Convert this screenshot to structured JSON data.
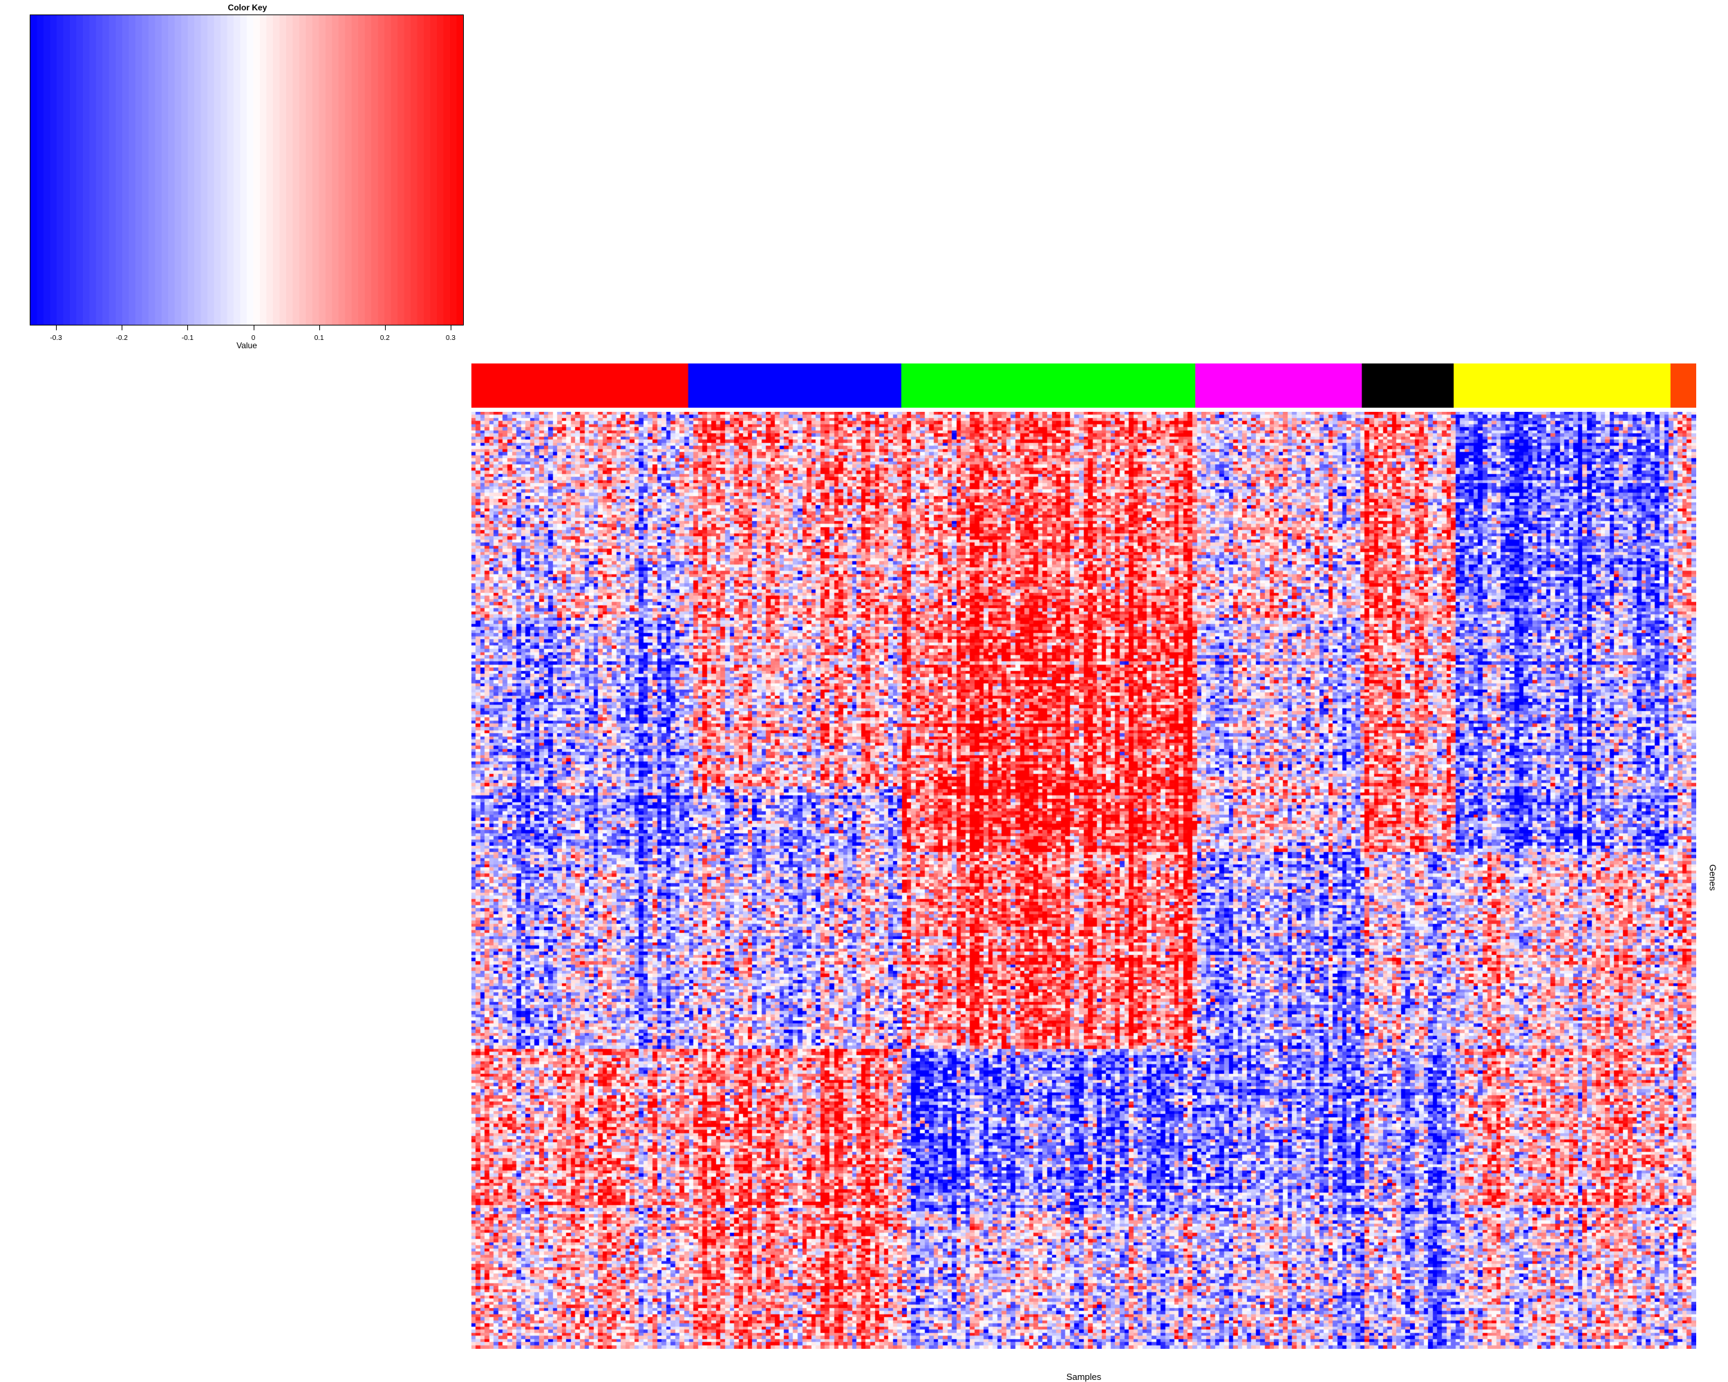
{
  "chart_data": {
    "type": "heatmap",
    "title": "",
    "xlabel": "Samples",
    "ylabel": "Genes",
    "color_key": {
      "title": "Color Key",
      "xlabel": "Value",
      "range": [
        -0.34,
        0.32
      ],
      "ticks": [
        -0.3,
        -0.2,
        -0.1,
        0,
        0.1,
        0.2,
        0.3
      ],
      "tick_labels": [
        "-0.3",
        "-0.2",
        "-0.1",
        "0",
        "0.1",
        "0.2",
        "0.3"
      ],
      "low_color": "#0000ff",
      "mid_color": "#ffffff",
      "high_color": "#ff0000"
    },
    "sample_groups": [
      {
        "color": "#ff0000",
        "fraction": 0.177
      },
      {
        "color": "#0000ff",
        "fraction": 0.174
      },
      {
        "color": "#00ff00",
        "fraction": 0.24
      },
      {
        "color": "#ff00ff",
        "fraction": 0.136
      },
      {
        "color": "#000000",
        "fraction": 0.075
      },
      {
        "color": "#ffff00",
        "fraction": 0.177
      },
      {
        "color": "#ff4500",
        "fraction": 0.021
      }
    ],
    "n_samples": 270,
    "n_genes": 300,
    "gene_block_boundaries": [
      0.1,
      0.22,
      0.4,
      0.47,
      0.68,
      0.85,
      1.0
    ],
    "block_means": [
      [
        0.02,
        0.12,
        0.14,
        -0.02,
        0.1,
        -0.22,
        0.05
      ],
      [
        0.0,
        0.1,
        0.18,
        0.02,
        0.16,
        -0.18,
        0.08
      ],
      [
        -0.1,
        0.06,
        0.22,
        -0.06,
        0.12,
        -0.14,
        0.0
      ],
      [
        -0.14,
        -0.1,
        0.24,
        -0.02,
        0.14,
        -0.18,
        -0.04
      ],
      [
        -0.06,
        -0.04,
        0.16,
        -0.14,
        -0.04,
        0.02,
        0.1
      ],
      [
        0.12,
        0.16,
        -0.18,
        -0.16,
        -0.12,
        0.08,
        0.02
      ],
      [
        0.06,
        0.14,
        -0.04,
        -0.06,
        -0.1,
        0.0,
        -0.02
      ]
    ]
  }
}
